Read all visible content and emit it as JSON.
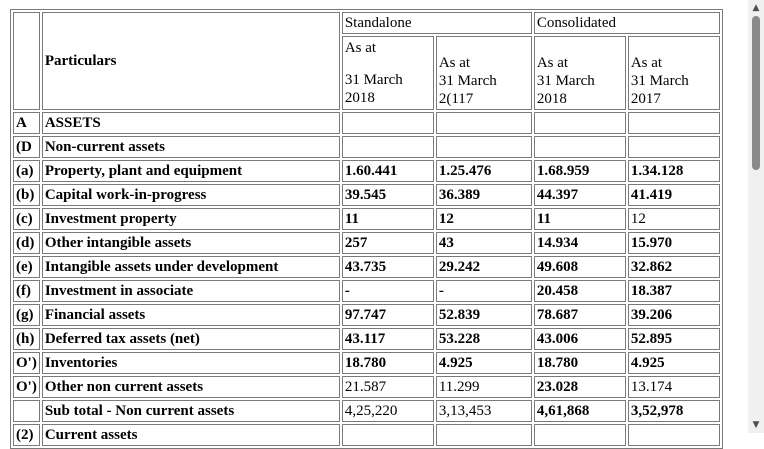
{
  "header": {
    "particulars": "Particulars",
    "standalone": "Standalone",
    "consolidated": "Consolidated",
    "col1": [
      "As at",
      "31 March",
      "2018"
    ],
    "col2": [
      "As at",
      "31 March",
      "2(117"
    ],
    "col3": [
      "As at",
      "31 March",
      "2018"
    ],
    "col4": [
      "As at",
      "31 March",
      "2017"
    ]
  },
  "rows": [
    {
      "idx": "A",
      "label": "ASSETS",
      "v1": "",
      "v2": "",
      "v3": "",
      "v4": ""
    },
    {
      "idx": "(D",
      "label": "Non-current assets",
      "v1": "",
      "v2": "",
      "v3": "",
      "v4": ""
    },
    {
      "idx": "(a)",
      "label": "Property, plant and equipment",
      "v1": "1.60.441",
      "v2": "1.25.476",
      "v3": "1.68.959",
      "v4": "1.34.128"
    },
    {
      "idx": "(b)",
      "label": "Capital work-in-progress",
      "v1": "39.545",
      "v2": "36.389",
      "v3": "44.397",
      "v4": "41.419"
    },
    {
      "idx": "(c)",
      "label": "Investment property",
      "v1": "11",
      "v2": "12",
      "v3": "11",
      "v4": "12"
    },
    {
      "idx": "(d)",
      "label": "Other intangible assets",
      "v1": "257",
      "v2": "43",
      "v3": "14.934",
      "v4": "15.970"
    },
    {
      "idx": "(e)",
      "label": "Intangible assets under development",
      "v1": "43.735",
      "v2": "29.242",
      "v3": "49.608",
      "v4": "32.862"
    },
    {
      "idx": "(f)",
      "label": "Investment in associate",
      "v1": "-",
      "v2": "-",
      "v3": "20.458",
      "v4": "18.387"
    },
    {
      "idx": "(g)",
      "label": "Financial assets",
      "v1": "97.747",
      "v2": "52.839",
      "v3": "78.687",
      "v4": "39.206"
    },
    {
      "idx": "(h)",
      "label": "Deferred tax assets (net)",
      "v1": "43.117",
      "v2": "53.228",
      "v3": "43.006",
      "v4": "52.895"
    },
    {
      "idx": "O')",
      "label": "Inventories",
      "v1": "18.780",
      "v2": "4.925",
      "v3": "18.780",
      "v4": "4.925"
    },
    {
      "idx": "O')",
      "label": "Other non current assets",
      "v1": "21.587",
      "v2": "11.299",
      "v3": "23.028",
      "v4": "13.174"
    },
    {
      "idx": "",
      "label": "Sub total - Non current assets",
      "v1": "4,25,220",
      "v2": "3,13,453",
      "v3": "4,61,868",
      "v4": "3,52,978"
    },
    {
      "idx": "(2)",
      "label": "Current assets",
      "v1": "",
      "v2": "",
      "v3": "",
      "v4": ""
    }
  ]
}
